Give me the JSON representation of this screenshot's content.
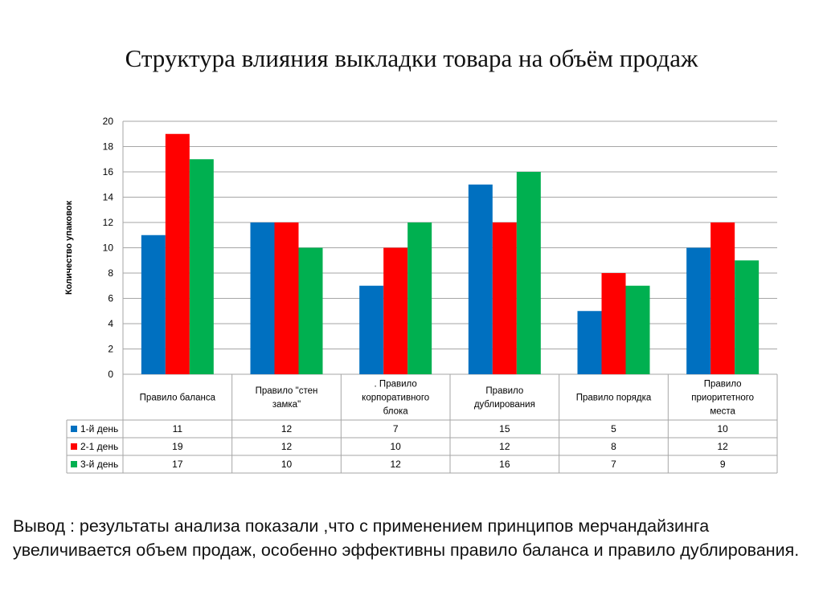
{
  "title": "Структура влияния выкладки товара на объём продаж",
  "conclusion": "Вывод : результаты анализа показали ,что с применением принципов мерчандайзинга увеличивается объем продаж, особенно эффективны  правило баланса и правило дублирования.",
  "chart_data": {
    "type": "bar",
    "ylabel": "Количество упаковок",
    "ylim": [
      0,
      20
    ],
    "yticks": [
      0,
      2,
      4,
      6,
      8,
      10,
      12,
      14,
      16,
      18,
      20
    ],
    "grid": true,
    "legend_placement": "data-table",
    "categories": [
      "Правило баланса",
      "Правило \"стен замка\"",
      ". Правило корпоративного блока",
      "Правило дублирования",
      "Правило порядка",
      "Правило приоритетного места"
    ],
    "category_lines": [
      [
        "Правило баланса"
      ],
      [
        "Правило \"стен",
        "замка\""
      ],
      [
        ". Правило",
        "корпоративного",
        "блока"
      ],
      [
        "Правило",
        "дублирования"
      ],
      [
        "Правило порядка"
      ],
      [
        "Правило",
        "приоритетного",
        "места"
      ]
    ],
    "series": [
      {
        "name": "1-й день",
        "color": "#0070C0",
        "values": [
          11,
          12,
          7,
          15,
          5,
          10
        ]
      },
      {
        "name": "2-1 день",
        "color": "#FF0000",
        "values": [
          19,
          12,
          10,
          12,
          8,
          12
        ]
      },
      {
        "name": "3-й день",
        "color": "#00B050",
        "values": [
          17,
          10,
          12,
          16,
          7,
          9
        ]
      }
    ]
  }
}
